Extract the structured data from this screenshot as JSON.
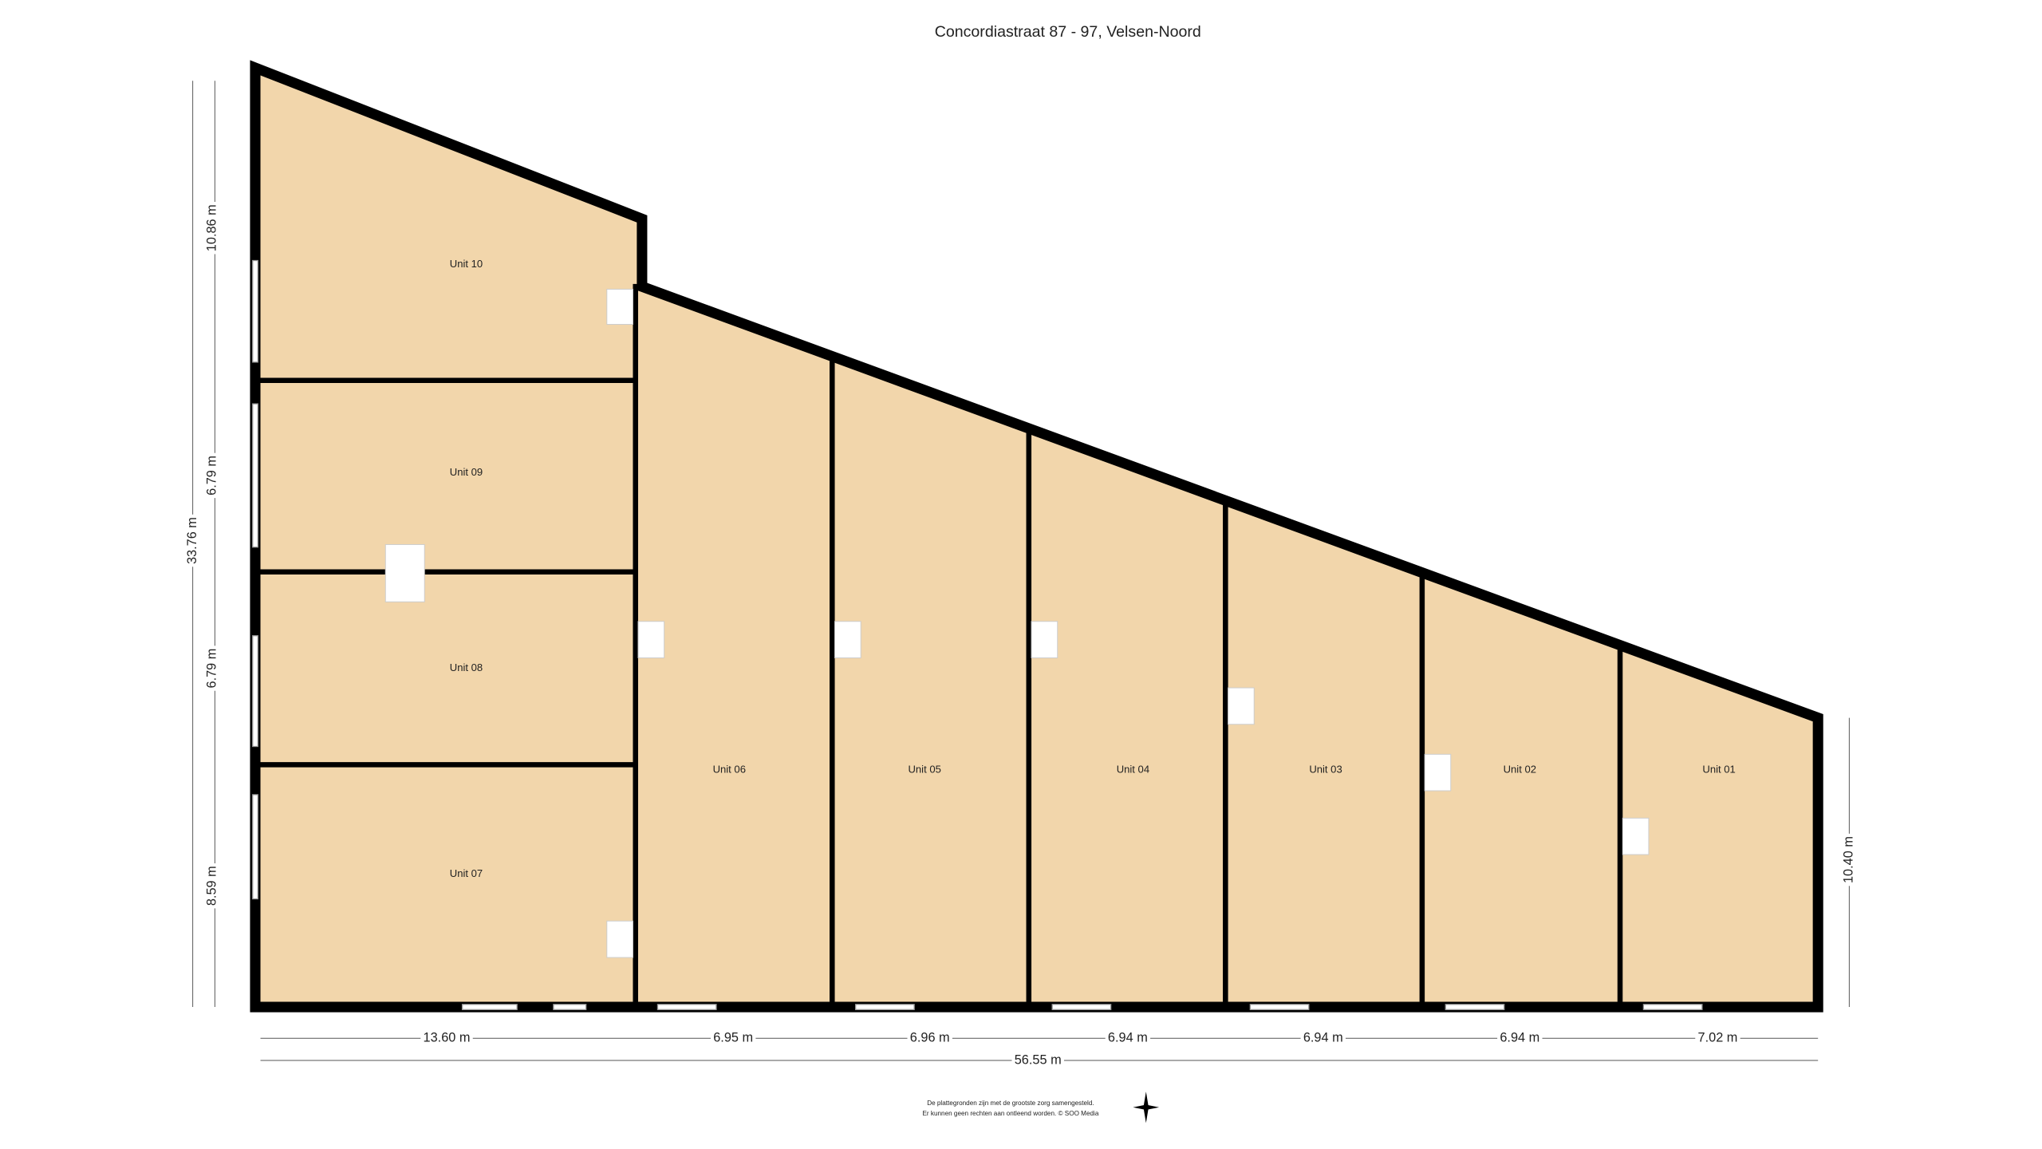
{
  "header": {
    "title": "Concordiastraat 87 - 97, Velsen-Noord"
  },
  "units": [
    {
      "label": "Unit 10"
    },
    {
      "label": "Unit 09"
    },
    {
      "label": "Unit 08"
    },
    {
      "label": "Unit 07"
    },
    {
      "label": "Unit 06"
    },
    {
      "label": "Unit 05"
    },
    {
      "label": "Unit 04"
    },
    {
      "label": "Unit 03"
    },
    {
      "label": "Unit 02"
    },
    {
      "label": "Unit 01"
    }
  ],
  "dimensions": {
    "left": [
      "10.86 m",
      "6.79 m",
      "6.79 m",
      "8.59 m"
    ],
    "total_height": "33.76 m",
    "right": "10.40 m",
    "bottom": [
      "13.60 m",
      "6.95 m",
      "6.96 m",
      "6.94 m",
      "6.94 m",
      "6.94 m",
      "7.02 m"
    ],
    "total_width": "56.55 m"
  },
  "footer": {
    "lines": [
      "De plattegronden zijn met de grootste zorg samengesteld.",
      "Er kunnen geen rechten aan ontleend worden. © SOO Media"
    ]
  }
}
